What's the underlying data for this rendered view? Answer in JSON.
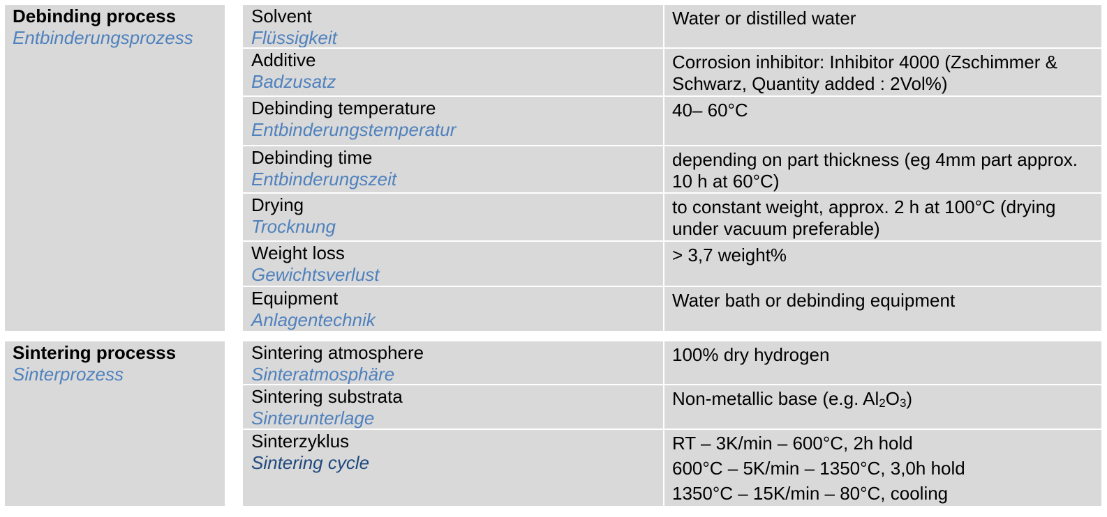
{
  "sections": [
    {
      "title_en": "Debinding process",
      "title_de": "Entbinderungsprozess",
      "rows": [
        {
          "param_en": "Solvent",
          "param_de": "Flüssigkeit",
          "value": "Water or distilled water"
        },
        {
          "param_en": "Additive",
          "param_de": "Badzusatz",
          "value": "Corrosion inhibitor: Inhibitor 4000 (Zschimmer & Schwarz, Quantity added : 2Vol%)"
        },
        {
          "param_en": "Debinding temperature",
          "param_de": "Entbinderungstemperatur",
          "value": "40– 60°C"
        },
        {
          "param_en": "Debinding time",
          "param_de": "Entbinderungszeit",
          "value": "depending on part thickness  (eg 4mm part approx. 10 h at 60°C)"
        },
        {
          "param_en": "Drying",
          "param_de": "Trocknung",
          "value": "to constant weight, approx. 2 h at 100°C (drying under vacuum preferable)"
        },
        {
          "param_en": "Weight loss",
          "param_de": "Gewichtsverlust",
          "value": "> 3,7 weight%"
        },
        {
          "param_en": "Equipment",
          "param_de": "Anlagentechnik",
          "value": "Water bath or debinding equipment"
        }
      ]
    },
    {
      "title_en": "Sintering processs",
      "title_de": "Sinterprozess",
      "rows": [
        {
          "param_en": "Sintering atmosphere",
          "param_de": "Sinteratmosphäre",
          "value": "100% dry hydrogen"
        },
        {
          "param_en": "Sintering substrata",
          "param_de": "Sinterunterlage",
          "value_prefix": "Non-metallic base (e.g.  Al",
          "value_sub1": "2",
          "value_mid": "O",
          "value_sub2": "3",
          "value_suffix": ")"
        },
        {
          "param_en": "Sinterzyklus",
          "param_de": "Sintering cycle",
          "value_lines": [
            "RT – 3K/min – 600°C, 2h hold",
            "600°C – 5K/min – 1350°C, 3,0h hold",
            "1350°C – 15K/min – 80°C, cooling"
          ]
        }
      ]
    }
  ]
}
